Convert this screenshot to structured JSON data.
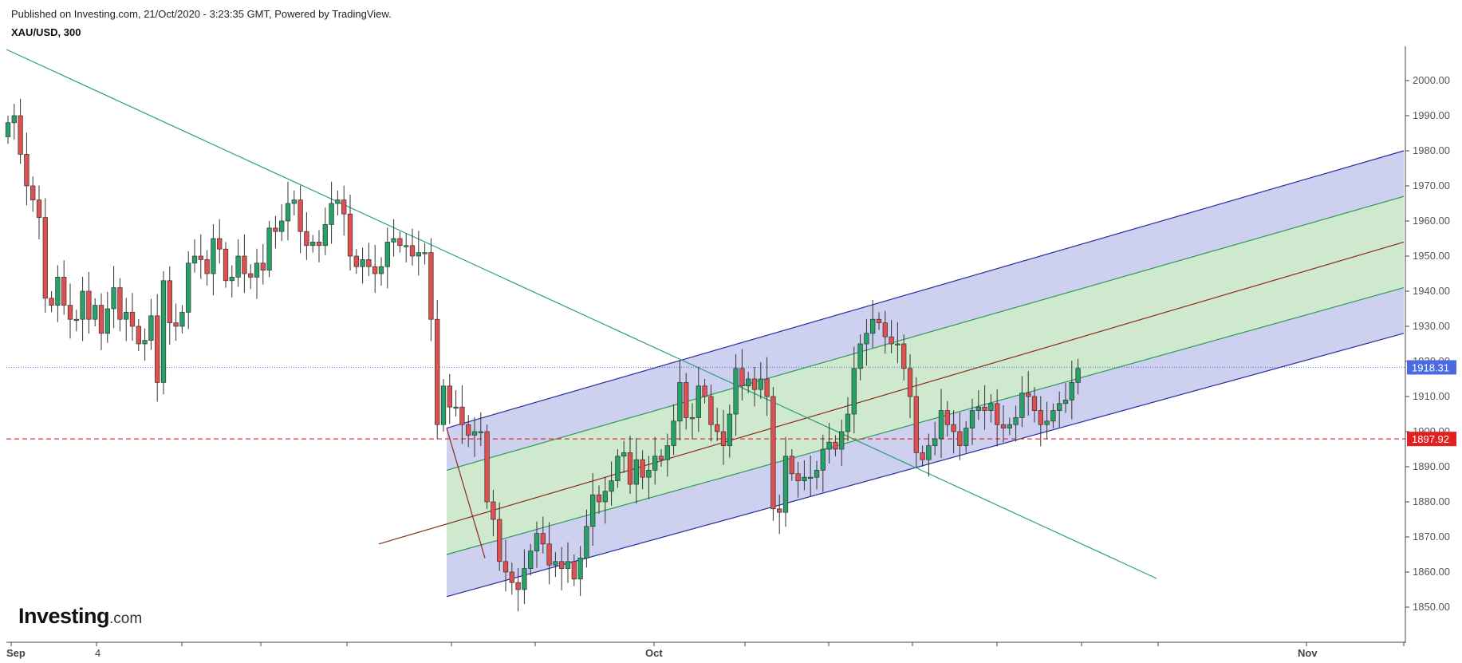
{
  "header": {
    "published": "Published on Investing.com, 21/Oct/2020 - 3:23:35 GMT, Powered by TradingView.",
    "symbol": "XAU/USD, 300"
  },
  "logo": {
    "main": "Investing",
    "domain": ".com"
  },
  "colors": {
    "up": "#26a269",
    "down": "#e05050",
    "channel_outer_fill": "#c8cbec",
    "channel_inner_fill": "#cdeacb",
    "channel_outer_line": "#2a2aa0",
    "channel_inner_line": "#2e9a5a",
    "median_line": "#8b2a1a",
    "trend_line": "#2aa07a",
    "support_line": "#e33333",
    "price_line": "#4a6adf"
  },
  "chart_data": {
    "type": "candlestick",
    "title": "XAU/USD, 300",
    "ylim": [
      1843,
      2010
    ],
    "y_ticks": [
      "1850.00",
      "1860.00",
      "1870.00",
      "1880.00",
      "1890.00",
      "1900.00",
      "1910.00",
      "1920.00",
      "1930.00",
      "1940.00",
      "1950.00",
      "1960.00",
      "1970.00",
      "1980.00",
      "1990.00",
      "2000.00"
    ],
    "x_labels": [
      "Sep",
      "4",
      "Oct",
      "Nov"
    ],
    "current_price": "1918.31",
    "support_level": "1897.92",
    "series": [
      {
        "name": "XAU/USD",
        "closes": [
          1988,
          1990,
          1979,
          1970,
          1966,
          1961,
          1938,
          1936,
          1944,
          1936,
          1932,
          1932,
          1940,
          1932,
          1936,
          1928,
          1935,
          1941,
          1932,
          1934,
          1930,
          1925,
          1926,
          1933,
          1914,
          1943,
          1931,
          1930,
          1934,
          1948,
          1950,
          1949,
          1945,
          1955,
          1952,
          1943,
          1944,
          1950,
          1945,
          1944,
          1948,
          1946,
          1958,
          1957,
          1960,
          1965,
          1966,
          1957,
          1953,
          1954,
          1953,
          1959,
          1965,
          1966,
          1962,
          1950,
          1947,
          1949,
          1947,
          1945,
          1947,
          1954,
          1955,
          1953,
          1953,
          1950,
          1951,
          1951,
          1932,
          1902,
          1913,
          1907,
          1907,
          1902,
          1899,
          1900,
          1900,
          1880,
          1875,
          1863,
          1860,
          1857,
          1855,
          1861,
          1866,
          1871,
          1868,
          1862,
          1863,
          1861,
          1863,
          1858,
          1864,
          1873,
          1882,
          1880,
          1883,
          1886,
          1893,
          1894,
          1885,
          1892,
          1887,
          1889,
          1893,
          1892,
          1896,
          1903,
          1914,
          1904,
          1904,
          1913,
          1910,
          1902,
          1900,
          1896,
          1905,
          1918,
          1913,
          1915,
          1912,
          1915,
          1910,
          1878,
          1877,
          1893,
          1888,
          1886,
          1887,
          1887,
          1889,
          1895,
          1897,
          1895,
          1900,
          1905,
          1918,
          1925,
          1928,
          1932,
          1931,
          1927,
          1925,
          1925,
          1918,
          1910,
          1894,
          1892,
          1896,
          1898,
          1906,
          1902,
          1900,
          1896,
          1901,
          1906,
          1907,
          1906,
          1908,
          1902,
          1901,
          1902,
          1904,
          1911,
          1910,
          1906,
          1902,
          1903,
          1906,
          1908,
          1909,
          1914,
          1918
        ]
      }
    ],
    "overlays": {
      "pitchfork": "upward regression channel with outer (blue) and inner (green) bands and red median",
      "trendline": "descending green trendline from early September high",
      "support": "horizontal dashed red line at 1897.92"
    }
  }
}
